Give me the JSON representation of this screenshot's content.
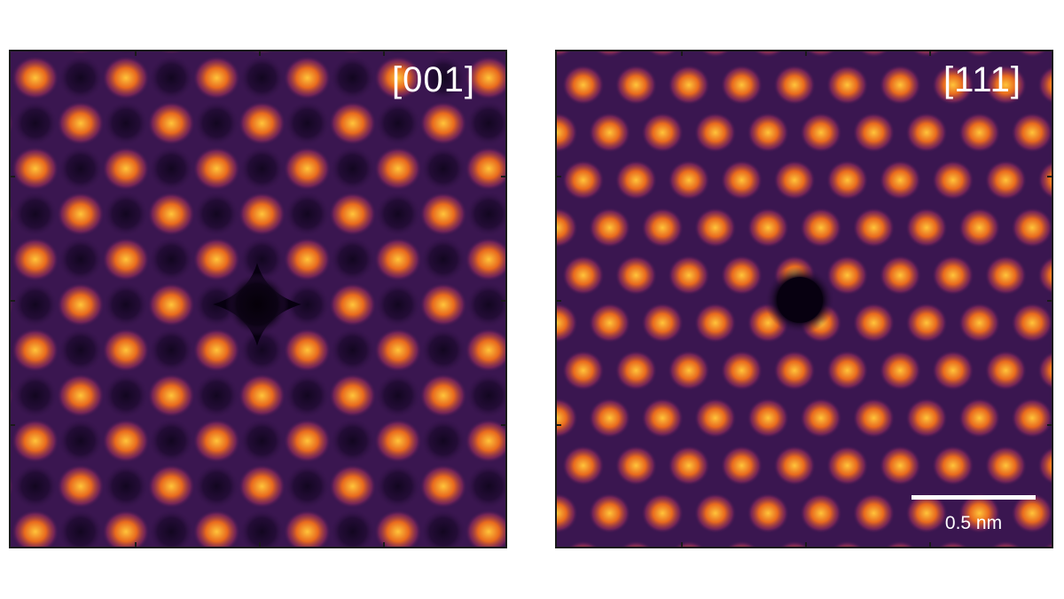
{
  "panels": [
    {
      "label": "[001]",
      "has_scale_bar": false
    },
    {
      "label": "[111]",
      "has_scale_bar": true
    }
  ],
  "scale_bar": {
    "label": "0.5 nm"
  },
  "colors": {
    "background": "#3a1650",
    "atom_core": "#ffc43a",
    "atom_mid": "#e86a1e",
    "dark_column": "#120620",
    "frame": "#1a1a1a",
    "label": "#ffffff"
  }
}
